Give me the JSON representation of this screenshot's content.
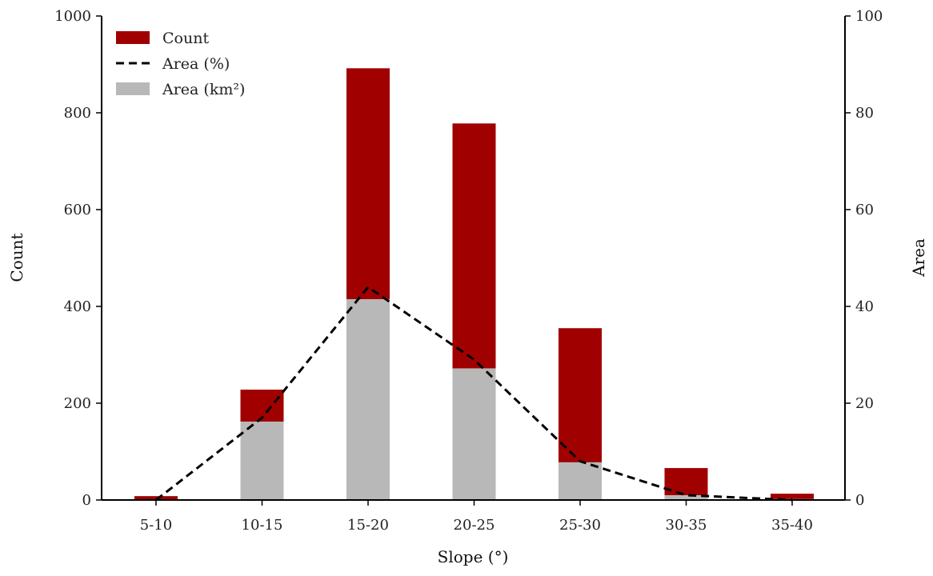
{
  "chart_data": {
    "type": "bar",
    "categories": [
      "5-10",
      "10-15",
      "15-20",
      "20-25",
      "25-30",
      "30-35",
      "35-40"
    ],
    "series": [
      {
        "name": "Count",
        "kind": "bar",
        "axis": "left",
        "color": "#a00000",
        "values": [
          8,
          228,
          892,
          778,
          355,
          66,
          13
        ]
      },
      {
        "name": "Area (km²)",
        "kind": "bar",
        "axis": "left",
        "color": "#b8b8b8",
        "values": [
          0,
          162,
          415,
          272,
          78,
          10,
          2
        ]
      },
      {
        "name": "Area (%)",
        "kind": "line",
        "axis": "right",
        "color": "#000000",
        "style": "dashed",
        "values": [
          0,
          17,
          44,
          29,
          8,
          1,
          0
        ]
      }
    ],
    "legend_order": [
      "Count",
      "Area (%)",
      "Area (km²)"
    ],
    "legend_position": "top-left",
    "xlabel": "Slope (°)",
    "ylabel": "Count",
    "y2label": "Area",
    "ylim": [
      0,
      1000
    ],
    "y2lim": [
      0,
      100
    ],
    "yticks": [
      "0",
      "200",
      "400",
      "600",
      "800",
      "1000"
    ],
    "y2ticks": [
      "0",
      "20",
      "40",
      "60",
      "80",
      "100"
    ],
    "grid": false
  }
}
